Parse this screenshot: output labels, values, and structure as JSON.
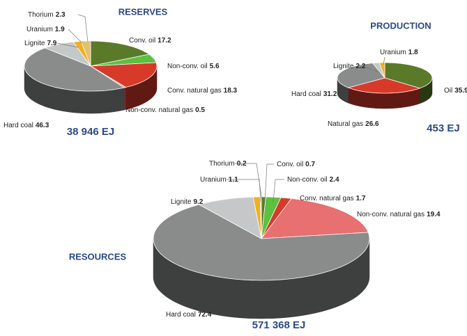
{
  "chart_data": [
    {
      "type": "pie",
      "title": "RESERVES",
      "total_label": "38 946 EJ",
      "categories": [
        "Conv. oil",
        "Non-conv. oil",
        "Conv. natural gas",
        "Non-conv. natural gas",
        "Hard coal",
        "Lignite",
        "Uranium",
        "Thorium"
      ],
      "values": [
        17.2,
        5.6,
        18.3,
        0.5,
        46.3,
        7.9,
        1.9,
        2.3
      ],
      "colors": [
        "#5a7a2a",
        "#5cc040",
        "#d83a2a",
        "#e87070",
        "#8a8c8c",
        "#c5c8c8",
        "#f0b020",
        "#e0c070"
      ]
    },
    {
      "type": "pie",
      "title": "PRODUCTION",
      "total_label": "453 EJ",
      "categories": [
        "Oil",
        "Natural gas",
        "Hard coal",
        "Lignite",
        "Uranium"
      ],
      "values": [
        35.9,
        26.6,
        31.2,
        2.2,
        1.8
      ],
      "colors": [
        "#5a7a2a",
        "#d83a2a",
        "#8a8c8c",
        "#c5c8c8",
        "#f0b020"
      ]
    },
    {
      "type": "pie",
      "title": "RESOURCES",
      "total_label": "571 368 EJ",
      "categories": [
        "Conv. oil",
        "Non-conv. oil",
        "Conv. natural gas",
        "Non-conv. natural gas",
        "Hard coal",
        "Lignite",
        "Uranium",
        "Thorium"
      ],
      "values": [
        0.7,
        2.4,
        1.7,
        19.4,
        72.4,
        9.2,
        1.1,
        0.2
      ],
      "colors": [
        "#5a7a2a",
        "#5cc040",
        "#d83a2a",
        "#e87070",
        "#8a8c8c",
        "#c5c8c8",
        "#f0b020",
        "#e0c070"
      ]
    }
  ]
}
